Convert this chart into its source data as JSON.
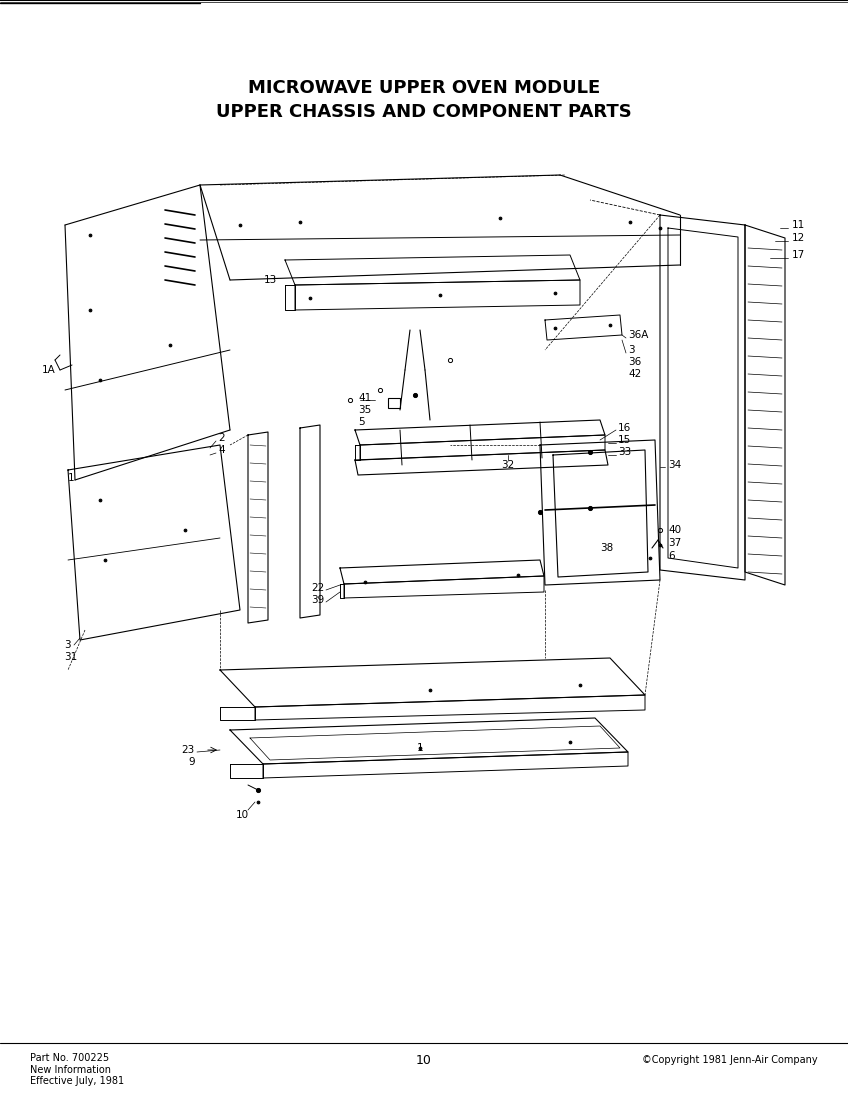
{
  "title_line1": "MICROWAVE UPPER OVEN MODULE",
  "title_line2": "UPPER CHASSIS AND COMPONENT PARTS",
  "footer_left": "Part No. 700225\nNew Information\nEffective July, 1981",
  "footer_center": "10",
  "footer_right": "©Copyright 1981 Jenn-Air Company",
  "bg_color": "#ffffff",
  "line_color": "#000000",
  "title_fontsize": 13,
  "footer_fontsize": 7,
  "label_fontsize": 7.5
}
